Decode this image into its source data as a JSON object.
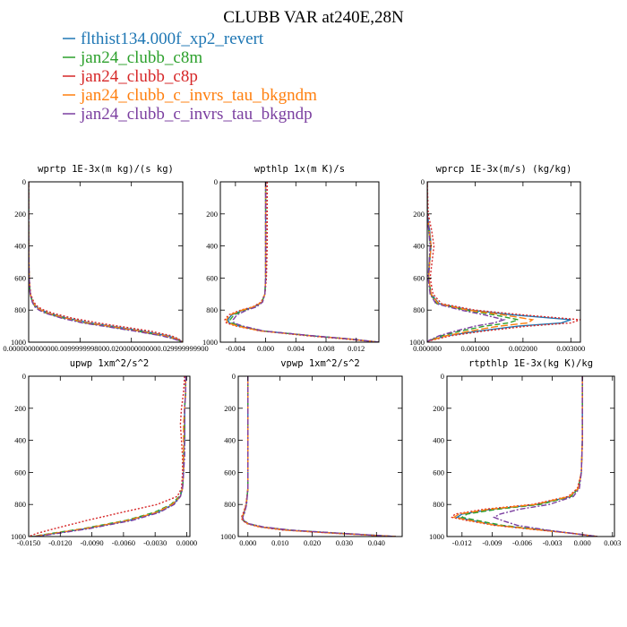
{
  "figure": {
    "title": "CLUBB VAR at240E,28N"
  },
  "legend": [
    {
      "name": "flthist134.000f_xp2_revert",
      "color": "#1f77b4"
    },
    {
      "name": "jan24_clubb_c8m",
      "color": "#2ca02c"
    },
    {
      "name": "jan24_clubb_c8p",
      "color": "#d62728"
    },
    {
      "name": "jan24_clubb_c_invrs_tau_bkgndm",
      "color": "#ff7f0e"
    },
    {
      "name": "jan24_clubb_c_invrs_tau_bkgndp",
      "color": "#7b3fa0"
    }
  ],
  "chart_data": [
    {
      "type": "line",
      "title": "wprtp  1E-3x(m kg)/(s kg)",
      "xlim": [
        0.0,
        0.03
      ],
      "ylim": [
        1000,
        0
      ],
      "x_ticks": [
        {
          "value": 0.0,
          "label": "0.000000000000"
        },
        {
          "value": 0.01,
          "label": "0.009999999800"
        },
        {
          "value": 0.02,
          "label": "0.020000000000"
        },
        {
          "value": 0.03,
          "label": "0.029999999900"
        }
      ],
      "y_ticks": [
        0,
        200,
        400,
        600,
        800,
        1000
      ],
      "y": [
        0,
        200,
        400,
        600,
        700,
        750,
        780,
        800,
        820,
        850,
        880,
        900,
        930,
        960,
        980,
        1000
      ],
      "series": [
        {
          "name": "flthist134.000f_xp2_revert",
          "x": [
            0,
            0,
            0,
            0.0001,
            0.0003,
            0.0008,
            0.0015,
            0.0025,
            0.004,
            0.0075,
            0.012,
            0.016,
            0.022,
            0.027,
            0.029,
            0.03
          ]
        },
        {
          "name": "jan24_clubb_c8m",
          "x": [
            0,
            0,
            0,
            0.0001,
            0.0003,
            0.0007,
            0.0013,
            0.0022,
            0.0035,
            0.0068,
            0.011,
            0.015,
            0.021,
            0.026,
            0.0285,
            0.03
          ]
        },
        {
          "name": "jan24_clubb_c8p",
          "x": [
            0,
            0,
            0,
            0.0001,
            0.0004,
            0.001,
            0.0018,
            0.003,
            0.0048,
            0.0085,
            0.0135,
            0.0175,
            0.0235,
            0.0278,
            0.0292,
            0.03
          ]
        },
        {
          "name": "jan24_clubb_c_invrs_tau_bkgndm",
          "x": [
            0,
            0,
            0,
            0.0001,
            0.0003,
            0.0008,
            0.0014,
            0.0024,
            0.0038,
            0.0072,
            0.0115,
            0.0155,
            0.0215,
            0.0265,
            0.0288,
            0.03
          ]
        },
        {
          "name": "jan24_clubb_c_invrs_tau_bkgndp",
          "x": [
            0,
            0,
            0,
            0.0001,
            0.0003,
            0.0007,
            0.0012,
            0.002,
            0.0033,
            0.0064,
            0.0105,
            0.0145,
            0.0205,
            0.0258,
            0.0283,
            0.03
          ]
        }
      ]
    },
    {
      "type": "line",
      "title": "wpthlp  1x(m K)/s",
      "xlim": [
        -0.006,
        0.015
      ],
      "ylim": [
        1000,
        0
      ],
      "x_ticks": [
        {
          "value": -0.004,
          "label": "-0.004"
        },
        {
          "value": 0.0,
          "label": "0.000"
        },
        {
          "value": 0.004,
          "label": "0.004"
        },
        {
          "value": 0.008,
          "label": "0.008"
        },
        {
          "value": 0.012,
          "label": "0.012"
        }
      ],
      "y_ticks": [
        0,
        200,
        400,
        600,
        800,
        1000
      ],
      "y": [
        0,
        200,
        400,
        600,
        700,
        750,
        780,
        800,
        830,
        860,
        880,
        900,
        930,
        960,
        980,
        1000
      ],
      "series": [
        {
          "name": "flthist134.000f_xp2_revert",
          "x": [
            0,
            0,
            0,
            0,
            -0.0001,
            -0.0005,
            -0.0015,
            -0.003,
            -0.0045,
            -0.005,
            -0.0048,
            -0.0035,
            -0.0005,
            0.006,
            0.011,
            0.015
          ]
        },
        {
          "name": "jan24_clubb_c8m",
          "x": [
            0,
            0,
            0,
            0,
            -0.0001,
            -0.0005,
            -0.0014,
            -0.0028,
            -0.0042,
            -0.0047,
            -0.0045,
            -0.0033,
            -0.0004,
            0.006,
            0.011,
            0.015
          ]
        },
        {
          "name": "jan24_clubb_c8p",
          "x": [
            0.0002,
            0.0002,
            0.0002,
            0.0001,
            -0.0001,
            -0.0006,
            -0.0017,
            -0.0033,
            -0.0049,
            -0.0054,
            -0.0052,
            -0.0039,
            -0.0007,
            0.0055,
            0.0105,
            0.015
          ]
        },
        {
          "name": "jan24_clubb_c_invrs_tau_bkgndm",
          "x": [
            0,
            0,
            0,
            0,
            -0.0001,
            -0.0005,
            -0.0016,
            -0.0031,
            -0.0047,
            -0.0052,
            -0.005,
            -0.0037,
            -0.0006,
            0.006,
            0.011,
            0.015
          ]
        },
        {
          "name": "jan24_clubb_c_invrs_tau_bkgndp",
          "x": [
            0,
            0,
            0,
            0,
            -0.0001,
            -0.0004,
            -0.0012,
            -0.0025,
            -0.0038,
            -0.0043,
            -0.0042,
            -0.003,
            -0.0003,
            0.0062,
            0.0112,
            0.015
          ]
        }
      ]
    },
    {
      "type": "line",
      "title": "wprcp  1E-3x(m/s) (kg/kg)",
      "xlim": [
        0.0,
        0.0032
      ],
      "ylim": [
        1000,
        0
      ],
      "x_ticks": [
        {
          "value": 0.0,
          "label": "0.000000"
        },
        {
          "value": 0.001,
          "label": "0.001000"
        },
        {
          "value": 0.002,
          "label": "0.002000"
        },
        {
          "value": 0.003,
          "label": "0.003000"
        }
      ],
      "y_ticks": [
        0,
        200,
        400,
        600,
        800,
        1000
      ],
      "y": [
        0,
        200,
        300,
        400,
        500,
        600,
        700,
        760,
        800,
        830,
        860,
        880,
        900,
        930,
        960,
        990,
        1000
      ],
      "series": [
        {
          "name": "flthist134.000f_xp2_revert",
          "x": [
            0,
            0,
            5e-05,
            8e-05,
            5e-05,
            3e-05,
            8e-05,
            0.00025,
            0.0009,
            0.0018,
            0.003,
            0.0028,
            0.0019,
            0.0011,
            0.0004,
            5e-05,
            0
          ]
        },
        {
          "name": "jan24_clubb_c8m",
          "x": [
            0,
            0,
            3e-05,
            7e-05,
            4e-05,
            3e-05,
            7e-05,
            0.0002,
            0.0008,
            0.0014,
            0.0019,
            0.0017,
            0.0012,
            0.0007,
            0.0003,
            4e-05,
            0
          ]
        },
        {
          "name": "jan24_clubb_c8p",
          "x": [
            0,
            2e-05,
            9e-05,
            0.00014,
            0.0001,
            6e-05,
            0.00012,
            0.0003,
            0.001,
            0.002,
            0.0032,
            0.003,
            0.0021,
            0.0012,
            0.0005,
            6e-05,
            0
          ]
        },
        {
          "name": "jan24_clubb_c_invrs_tau_bkgndm",
          "x": [
            0,
            0,
            4e-05,
            8e-05,
            5e-05,
            3e-05,
            8e-05,
            0.00023,
            0.00085,
            0.0016,
            0.0022,
            0.0021,
            0.0015,
            0.0009,
            0.0004,
            5e-05,
            0
          ]
        },
        {
          "name": "jan24_clubb_c_invrs_tau_bkgndp",
          "x": [
            0,
            0,
            3e-05,
            6e-05,
            4e-05,
            2e-05,
            6e-05,
            0.00018,
            0.0007,
            0.0012,
            0.0016,
            0.0014,
            0.001,
            0.0006,
            0.00025,
            3e-05,
            0
          ]
        }
      ]
    },
    {
      "type": "line",
      "title": "upwp  1xm^2/s^2",
      "xlim": [
        -0.015,
        0.0003
      ],
      "ylim": [
        1000,
        0
      ],
      "x_ticks": [
        {
          "value": -0.015,
          "label": "-0.0150"
        },
        {
          "value": -0.012,
          "label": "-0.0120"
        },
        {
          "value": -0.009,
          "label": "-0.0090"
        },
        {
          "value": -0.006,
          "label": "-0.0060"
        },
        {
          "value": -0.003,
          "label": "-0.0030"
        },
        {
          "value": 0.0,
          "label": "0.0000"
        }
      ],
      "y_ticks": [
        0,
        200,
        400,
        600,
        800,
        1000
      ],
      "y": [
        0,
        100,
        200,
        300,
        400,
        500,
        600,
        700,
        750,
        800,
        850,
        900,
        950,
        980,
        1000
      ],
      "series": [
        {
          "name": "flthist134.000f_xp2_revert",
          "x": [
            -0.0001,
            -0.0001,
            -0.0002,
            -0.0002,
            -0.0002,
            -0.0003,
            -0.0003,
            -0.0004,
            -0.0006,
            -0.0013,
            -0.0028,
            -0.0055,
            -0.0095,
            -0.0125,
            -0.0145
          ]
        },
        {
          "name": "jan24_clubb_c8m",
          "x": [
            -0.0001,
            -0.0001,
            -0.0002,
            -0.0002,
            -0.0002,
            -0.0003,
            -0.0003,
            -0.0004,
            -0.0007,
            -0.0015,
            -0.0031,
            -0.0058,
            -0.0098,
            -0.0128,
            -0.0147
          ]
        },
        {
          "name": "jan24_clubb_c8p",
          "x": [
            -0.0002,
            -0.0003,
            -0.0005,
            -0.0006,
            -0.0005,
            -0.0004,
            -0.0004,
            -0.0005,
            -0.0009,
            -0.0028,
            -0.0062,
            -0.0095,
            -0.0125,
            -0.0142,
            -0.015
          ]
        },
        {
          "name": "jan24_clubb_c_invrs_tau_bkgndm",
          "x": [
            -0.0001,
            -0.0001,
            -0.0002,
            -0.0003,
            -0.0003,
            -0.0003,
            -0.0003,
            -0.0004,
            -0.0006,
            -0.0014,
            -0.0029,
            -0.0056,
            -0.0096,
            -0.0126,
            -0.0146
          ]
        },
        {
          "name": "jan24_clubb_c_invrs_tau_bkgndp",
          "x": [
            -0.0001,
            -0.0001,
            -0.0002,
            -0.0002,
            -0.0002,
            -0.0002,
            -0.0003,
            -0.0004,
            -0.0006,
            -0.0012,
            -0.0026,
            -0.0052,
            -0.0092,
            -0.0122,
            -0.0143
          ]
        }
      ]
    },
    {
      "type": "line",
      "title": "vpwp  1xm^2/s^2",
      "xlim": [
        -0.003,
        0.048
      ],
      "ylim": [
        1000,
        0
      ],
      "x_ticks": [
        {
          "value": 0.0,
          "label": "0.000"
        },
        {
          "value": 0.01,
          "label": "0.010"
        },
        {
          "value": 0.02,
          "label": "0.020"
        },
        {
          "value": 0.03,
          "label": "0.030"
        },
        {
          "value": 0.04,
          "label": "0.040"
        }
      ],
      "y_ticks": [
        0,
        200,
        400,
        600,
        800,
        1000
      ],
      "y": [
        0,
        200,
        400,
        600,
        700,
        800,
        850,
        880,
        900,
        920,
        940,
        960,
        980,
        1000
      ],
      "series": [
        {
          "name": "flthist134.000f_xp2_revert",
          "x": [
            0,
            0,
            0,
            0,
            0,
            -0.0005,
            -0.0012,
            -0.0018,
            -0.0015,
            0.0,
            0.004,
            0.012,
            0.028,
            0.046
          ]
        },
        {
          "name": "jan24_clubb_c8m",
          "x": [
            0,
            0,
            0,
            0,
            0,
            -0.0005,
            -0.0011,
            -0.0017,
            -0.0014,
            0.0002,
            0.0045,
            0.013,
            0.029,
            0.046
          ]
        },
        {
          "name": "jan24_clubb_c8p",
          "x": [
            0,
            0,
            0,
            0,
            0,
            -0.0006,
            -0.0014,
            -0.002,
            -0.0017,
            -0.0002,
            0.0035,
            0.011,
            0.027,
            0.046
          ]
        },
        {
          "name": "jan24_clubb_c_invrs_tau_bkgndm",
          "x": [
            0,
            0,
            0,
            0,
            0,
            -0.0005,
            -0.0012,
            -0.0018,
            -0.0015,
            0.0,
            0.004,
            0.012,
            0.028,
            0.046
          ]
        },
        {
          "name": "jan24_clubb_c_invrs_tau_bkgndp",
          "x": [
            0,
            0,
            0,
            0,
            0,
            -0.0004,
            -0.001,
            -0.0016,
            -0.0013,
            0.0003,
            0.0048,
            0.0135,
            0.0295,
            0.046
          ]
        }
      ]
    },
    {
      "type": "line",
      "title": "rtpthlp  1E-3x(kg K)/kg",
      "xlim": [
        -0.0135,
        0.0032
      ],
      "ylim": [
        1000,
        0
      ],
      "x_ticks": [
        {
          "value": -0.012,
          "label": "-0.012"
        },
        {
          "value": -0.009,
          "label": "-0.009"
        },
        {
          "value": -0.006,
          "label": "-0.006"
        },
        {
          "value": -0.003,
          "label": "-0.003"
        },
        {
          "value": 0.0,
          "label": "0.000"
        },
        {
          "value": 0.003,
          "label": "0.003"
        }
      ],
      "y_ticks": [
        0,
        200,
        400,
        600,
        800,
        1000
      ],
      "y": [
        0,
        200,
        400,
        600,
        700,
        750,
        800,
        830,
        860,
        880,
        900,
        930,
        960,
        980,
        1000
      ],
      "series": [
        {
          "name": "flthist134.000f_xp2_revert",
          "x": [
            0,
            0,
            0,
            -0.0001,
            -0.0004,
            -0.0012,
            -0.0045,
            -0.009,
            -0.012,
            -0.0125,
            -0.011,
            -0.0085,
            -0.004,
            -0.001,
            0.0015
          ]
        },
        {
          "name": "jan24_clubb_c8m",
          "x": [
            0,
            0,
            0,
            -0.0001,
            -0.0004,
            -0.0011,
            -0.0042,
            -0.0085,
            -0.0115,
            -0.012,
            -0.0105,
            -0.008,
            -0.0038,
            -0.001,
            0.0015
          ]
        },
        {
          "name": "jan24_clubb_c8p",
          "x": [
            0,
            0,
            0,
            -0.0001,
            -0.0005,
            -0.0014,
            -0.005,
            -0.0098,
            -0.0127,
            -0.013,
            -0.0115,
            -0.0088,
            -0.0042,
            -0.001,
            0.0015
          ]
        },
        {
          "name": "jan24_clubb_c_invrs_tau_bkgndm",
          "x": [
            0,
            0,
            0,
            -0.0001,
            -0.0004,
            -0.0013,
            -0.0047,
            -0.0093,
            -0.0123,
            -0.0128,
            -0.0112,
            -0.0086,
            -0.0041,
            -0.001,
            0.0015
          ]
        },
        {
          "name": "jan24_clubb_c_invrs_tau_bkgndp",
          "x": [
            0,
            0,
            0,
            -0.0001,
            -0.0003,
            -0.0009,
            -0.0033,
            -0.0063,
            -0.0082,
            -0.0088,
            -0.008,
            -0.0065,
            -0.0035,
            -0.001,
            0.0015
          ]
        }
      ]
    }
  ]
}
